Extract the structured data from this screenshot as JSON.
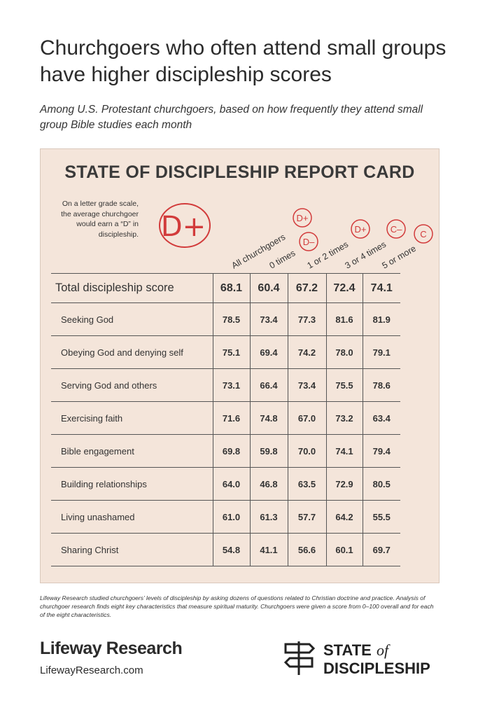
{
  "header": {
    "title": "Churchgoers who often attend small groups have higher discipleship scores",
    "subtitle": "Among U.S. Protestant churchgoers, based on how frequently they attend small group Bible studies each month"
  },
  "card": {
    "title": "STATE OF DISCIPLESHIP REPORT CARD",
    "note": "On a letter grade scale, the average churchgoer would earn a “D” in discipleship.",
    "overall_grade": "D+",
    "columns": [
      "All churchgoers",
      "0 times",
      "1 or 2 times",
      "3 or 4 times",
      "5 or more"
    ],
    "column_grades": [
      "D+",
      "D–",
      "D+",
      "C–",
      "C"
    ],
    "table": {
      "rows": [
        [
          "Total discipleship score",
          "68.1",
          "60.4",
          "67.2",
          "72.4",
          "74.1"
        ],
        [
          "Seeking God",
          "78.5",
          "73.4",
          "77.3",
          "81.6",
          "81.9"
        ],
        [
          "Obeying God and denying self",
          "75.1",
          "69.4",
          "74.2",
          "78.0",
          "79.1"
        ],
        [
          "Serving God and others",
          "73.1",
          "66.4",
          "73.4",
          "75.5",
          "78.6"
        ],
        [
          "Exercising faith",
          "71.6",
          "74.8",
          "67.0",
          "73.2",
          "63.4"
        ],
        [
          "Bible engagement",
          "69.8",
          "59.8",
          "70.0",
          "74.1",
          "79.4"
        ],
        [
          "Building relationships",
          "64.0",
          "46.8",
          "63.5",
          "72.9",
          "80.5"
        ],
        [
          "Living unashamed",
          "61.0",
          "61.3",
          "57.7",
          "64.2",
          "55.5"
        ],
        [
          "Sharing Christ",
          "54.8",
          "41.1",
          "56.6",
          "60.1",
          "69.7"
        ]
      ]
    }
  },
  "footnote": "Lifeway Research studied churchgoers’ levels of discipleship by asking dozens of questions related to Christian doctrine and practice. Analysis of churchgoer research finds eight key characteristics that measure spiritual maturity. Churchgoers were given a score from 0–100 overall and for each of the eight characteristics.",
  "footer": {
    "brand": "Lifeway Research",
    "url": "LifewayResearch.com",
    "logo": {
      "line1": "STATE",
      "of": "of",
      "line2": "DISCIPLESHIP"
    }
  }
}
